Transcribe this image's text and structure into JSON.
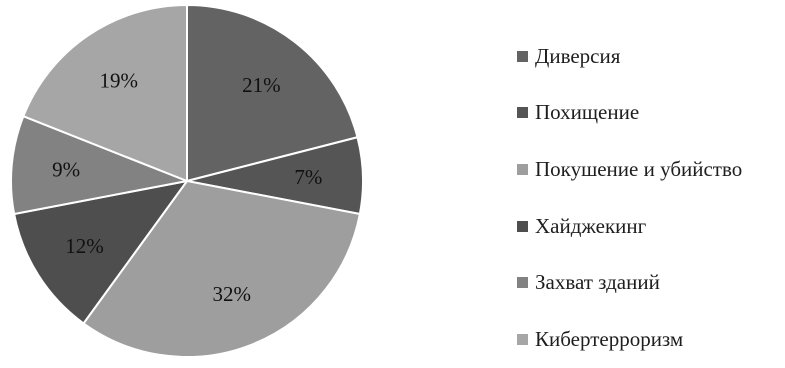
{
  "chart_data": {
    "type": "pie",
    "start_angle_deg": 90,
    "direction": "clockwise",
    "legend_position": "right",
    "slices": [
      {
        "label": "Диверсия",
        "value": 21,
        "value_label": "21%",
        "color": "#636363"
      },
      {
        "label": "Похищение",
        "value": 7,
        "value_label": "7%",
        "color": "#555555"
      },
      {
        "label": "Покушение и убийство",
        "value": 32,
        "value_label": "32%",
        "color": "#9e9e9e"
      },
      {
        "label": "Хайджекинг",
        "value": 12,
        "value_label": "12%",
        "color": "#4e4e4e"
      },
      {
        "label": "Захват зданий",
        "value": 9,
        "value_label": "9%",
        "color": "#828282"
      },
      {
        "label": "Кибертерроризм",
        "value": 19,
        "value_label": "19%",
        "color": "#a6a6a6"
      }
    ]
  }
}
